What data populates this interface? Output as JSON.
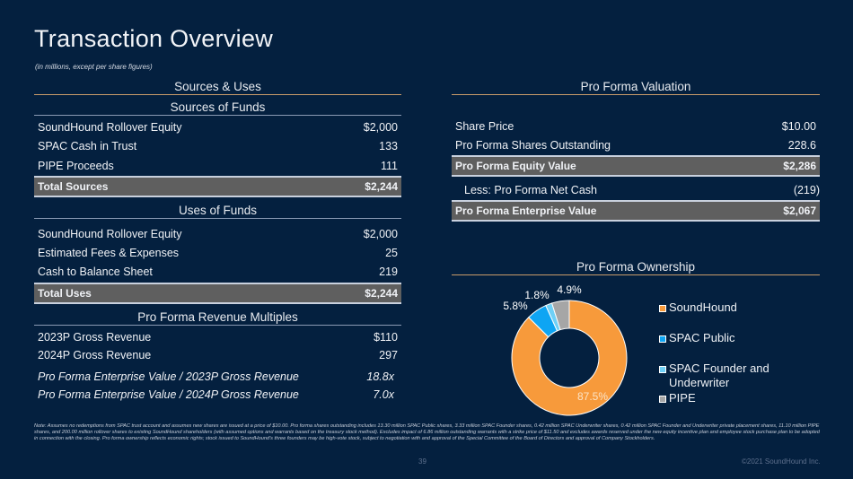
{
  "title": "Transaction Overview",
  "subtitle": "(in millions, except per share figures)",
  "sources_uses": {
    "header": "Sources & Uses",
    "sources": {
      "header": "Sources of Funds",
      "rows": [
        {
          "label": "SoundHound Rollover Equity",
          "value": "$2,000"
        },
        {
          "label": "SPAC Cash in Trust",
          "value": "133"
        },
        {
          "label": "PIPE Proceeds",
          "value": "111"
        }
      ],
      "total": {
        "label": "Total Sources",
        "value": "$2,244"
      }
    },
    "uses": {
      "header": "Uses of Funds",
      "rows": [
        {
          "label": "SoundHound Rollover Equity",
          "value": "$2,000"
        },
        {
          "label": "Estimated Fees & Expenses",
          "value": "25"
        },
        {
          "label": "Cash to Balance Sheet",
          "value": "219"
        }
      ],
      "total": {
        "label": "Total Uses",
        "value": "$2,244"
      }
    }
  },
  "revenue_multiples": {
    "header": "Pro Forma Revenue Multiples",
    "rows": [
      {
        "label": "2023P Gross Revenue",
        "value": "$110"
      },
      {
        "label": "2024P Gross Revenue",
        "value": "297"
      },
      {
        "label": "Pro Forma Enterprise Value / 2023P Gross Revenue",
        "value": "18.8x"
      },
      {
        "label": "Pro Forma Enterprise Value / 2024P Gross Revenue",
        "value": "7.0x"
      }
    ]
  },
  "valuation": {
    "header": "Pro Forma Valuation",
    "rows": [
      {
        "label": "Share Price",
        "value": "$10.00"
      },
      {
        "label": "Pro Forma Shares Outstanding",
        "value": "228.6"
      },
      {
        "label": "Pro Forma Equity Value",
        "value": "$2,286"
      },
      {
        "label": "Less: Pro Forma Net Cash",
        "value": "(219)"
      },
      {
        "label": "Pro Forma Enterprise Value",
        "value": "$2,067"
      }
    ]
  },
  "ownership": {
    "header": "Pro Forma Ownership"
  },
  "chart_data": {
    "type": "pie",
    "title": "Pro Forma Ownership",
    "donut": true,
    "legend_position": "right",
    "categories": [
      "SoundHound",
      "SPAC Public",
      "SPAC Founder and Underwriter",
      "PIPE"
    ],
    "values": [
      87.5,
      5.8,
      1.8,
      4.9
    ],
    "data_labels": [
      "87.5%",
      "5.8%",
      "1.8%",
      "4.9%"
    ],
    "colors": [
      "#f79a3b",
      "#0ea5f3",
      "#6fd0f6",
      "#a6a6a6"
    ],
    "legend_labels": [
      [
        "SoundHound"
      ],
      [
        "SPAC Public"
      ],
      [
        "SPAC Founder and",
        "Underwriter"
      ],
      [
        "PIPE"
      ]
    ]
  },
  "footnote": "Note: Assumes no redemptions from SPAC trust account and assumes new shares are issued at a price of $10.00. Pro forma shares outstanding includes 13.30 million SPAC Public shares, 3.33 million SPAC Founder shares, 0.42 million SPAC Underwriter shares, 0.42 million SPAC Founder and Underwriter private placement shares, 11.10 million PIPE shares, and 200.00 million rollover shares to existing SoundHound shareholders (with assumed options and warrants based on the treasury stock method). Excludes impact of 6.86 million outstanding warrants with a strike price of $11.50 and excludes awards reserved under the new equity incentive plan and employee stock purchase plan to be adopted in connection with the closing. Pro forma ownership reflects economic rights; stock issued to SoundHound's three founders may be high-vote stock, subject to negotiation with and approval of the Special Committee of the Board of Directors and approval of Company Stockholders.",
  "page_number": "39",
  "copyright": "©2021 SoundHound Inc."
}
